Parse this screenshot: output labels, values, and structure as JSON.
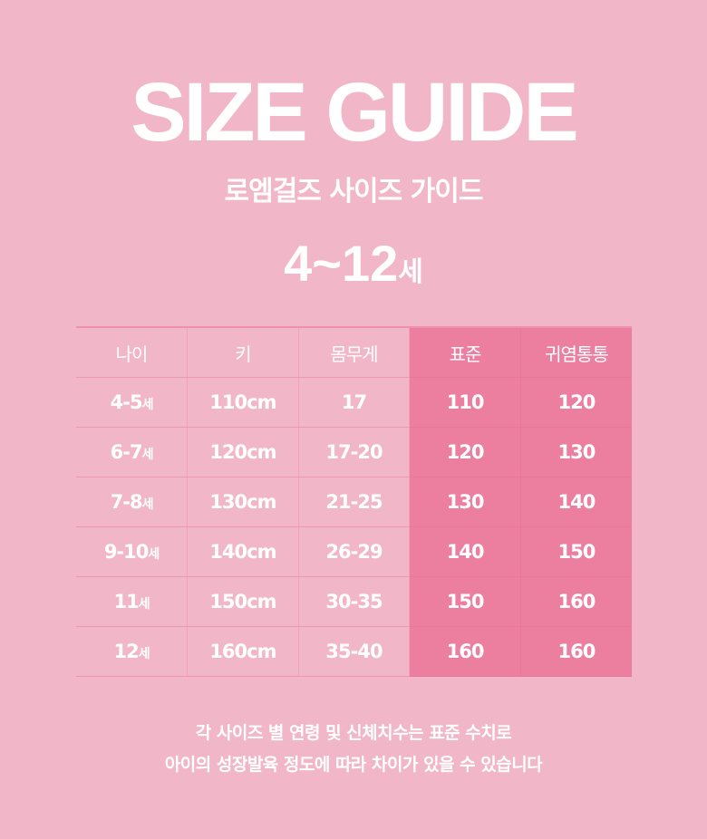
{
  "header": {
    "title": "SIZE GUIDE",
    "subtitle": "로엠걸즈 사이즈 가이드",
    "age_range": "4~12",
    "age_unit": "세"
  },
  "colors": {
    "background": "#f2b6c9",
    "highlight": "#ec7f9f",
    "text": "#ffffff"
  },
  "table": {
    "headers": [
      "나이",
      "키",
      "몸무게",
      "표준",
      "귀염통통"
    ],
    "rows": [
      {
        "age": "4-5",
        "unit": "세",
        "height": "110cm",
        "weight": "17",
        "standard": "110",
        "chubby": "120"
      },
      {
        "age": "6-7",
        "unit": "세",
        "height": "120cm",
        "weight": "17-20",
        "standard": "120",
        "chubby": "130"
      },
      {
        "age": "7-8",
        "unit": "세",
        "height": "130cm",
        "weight": "21-25",
        "standard": "130",
        "chubby": "140"
      },
      {
        "age": "9-10",
        "unit": "세",
        "height": "140cm",
        "weight": "26-29",
        "standard": "140",
        "chubby": "150"
      },
      {
        "age": "11",
        "unit": "세",
        "height": "150cm",
        "weight": "30-35",
        "standard": "150",
        "chubby": "160"
      },
      {
        "age": "12",
        "unit": "세",
        "height": "160cm",
        "weight": "35-40",
        "standard": "160",
        "chubby": "160"
      }
    ]
  },
  "note": {
    "line1": "각 사이즈 별 연령 및 신체치수는 표준 수치로",
    "line2": "아이의 성장발육 정도에 따라 차이가 있을 수 있습니다"
  }
}
